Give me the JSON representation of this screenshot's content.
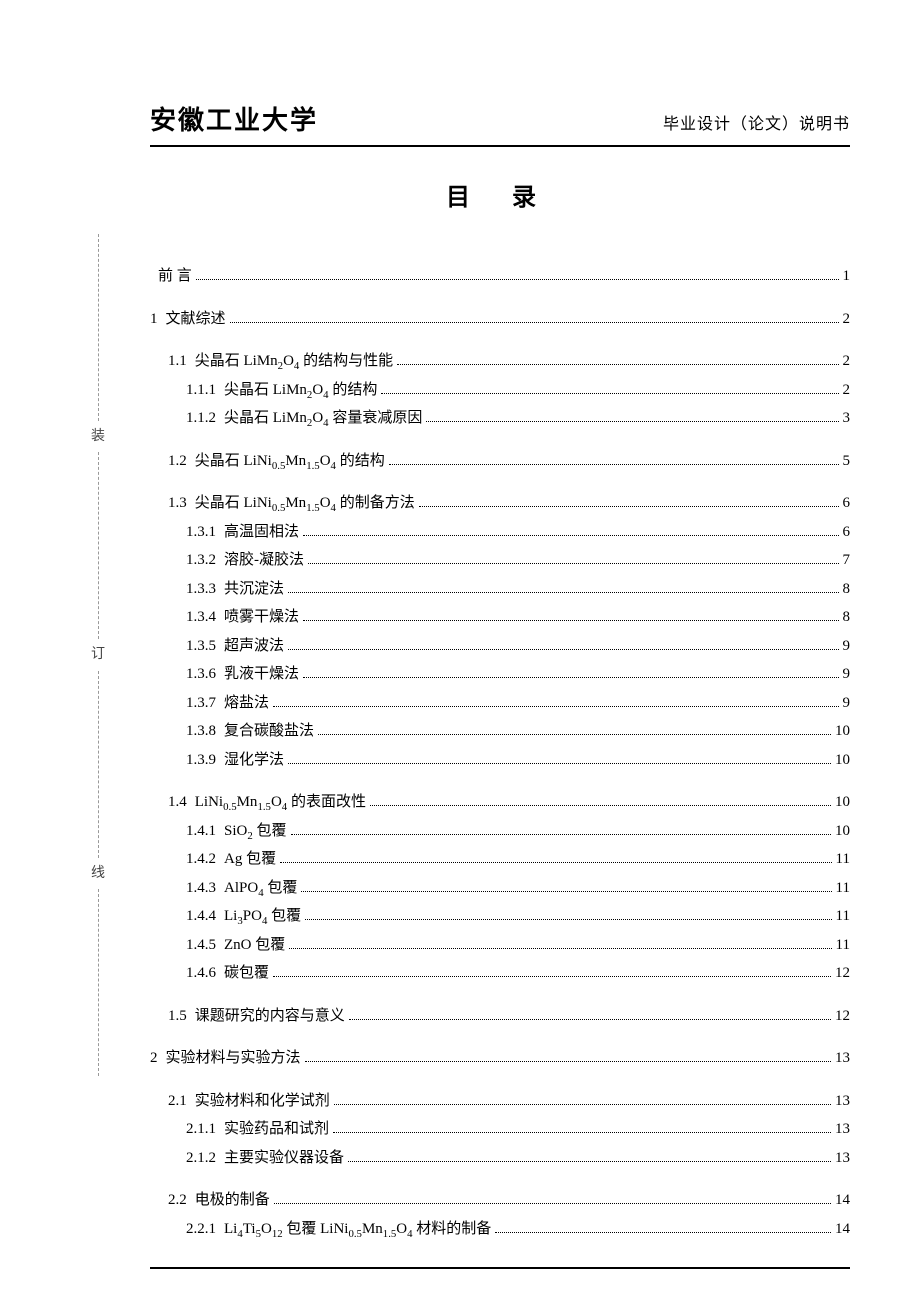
{
  "header": {
    "university": "安徽工业大学",
    "subtitle": "毕业设计（论文）说明书"
  },
  "toc_title": "目  录",
  "binding_chars": [
    "装",
    "订",
    "线"
  ],
  "entries": [
    {
      "level": 0,
      "gap": false,
      "num": "",
      "label": "前    言",
      "page": "1"
    },
    {
      "level": 0,
      "gap": true,
      "num": "1",
      "label": "    文献综述",
      "page": "2"
    },
    {
      "level": 1,
      "gap": true,
      "num": "1.1",
      "label": "尖晶石 LiMn<sub>2</sub>O<sub>4</sub> 的结构与性能",
      "page": "2"
    },
    {
      "level": 2,
      "gap": false,
      "num": "1.1.1",
      "label": " 尖晶石 LiMn<sub>2</sub>O<sub>4</sub> 的结构",
      "page": "2"
    },
    {
      "level": 2,
      "gap": false,
      "num": "1.1.2",
      "label": " 尖晶石 LiMn<sub>2</sub>O<sub>4</sub> 容量衰减原因",
      "page": "3"
    },
    {
      "level": 1,
      "gap": true,
      "num": "1.2",
      "label": "尖晶石 LiNi<sub>0.5</sub>Mn<sub>1.5</sub>O<sub>4</sub> 的结构",
      "page": "5"
    },
    {
      "level": 1,
      "gap": true,
      "num": "1.3",
      "label": "尖晶石 LiNi<sub>0.5</sub>Mn<sub>1.5</sub>O<sub>4</sub> 的制备方法",
      "page": "6"
    },
    {
      "level": 2,
      "gap": false,
      "num": "1.3.1",
      "label": " 高温固相法",
      "page": "6"
    },
    {
      "level": 2,
      "gap": false,
      "num": "1.3.2",
      "label": " 溶胶-凝胶法",
      "page": "7"
    },
    {
      "level": 2,
      "gap": false,
      "num": "1.3.3",
      "label": " 共沉淀法",
      "page": "8"
    },
    {
      "level": 2,
      "gap": false,
      "num": "1.3.4",
      "label": " 喷雾干燥法",
      "page": "8"
    },
    {
      "level": 2,
      "gap": false,
      "num": "1.3.5",
      "label": " 超声波法",
      "page": "9"
    },
    {
      "level": 2,
      "gap": false,
      "num": "1.3.6",
      "label": " 乳液干燥法",
      "page": "9"
    },
    {
      "level": 2,
      "gap": false,
      "num": "1.3.7",
      "label": " 熔盐法",
      "page": "9"
    },
    {
      "level": 2,
      "gap": false,
      "num": "1.3.8",
      "label": " 复合碳酸盐法",
      "page": "10"
    },
    {
      "level": 2,
      "gap": false,
      "num": "1.3.9",
      "label": " 湿化学法",
      "page": "10"
    },
    {
      "level": 1,
      "gap": true,
      "num": "1.4",
      "label": "LiNi<sub>0.5</sub>Mn<sub>1.5</sub>O<sub>4</sub> 的表面改性",
      "page": "10"
    },
    {
      "level": 2,
      "gap": false,
      "num": "1.4.1",
      "label": " SiO<sub>2</sub> 包覆",
      "page": "10"
    },
    {
      "level": 2,
      "gap": false,
      "num": "1.4.2",
      "label": " Ag 包覆",
      "page": "11"
    },
    {
      "level": 2,
      "gap": false,
      "num": "1.4.3",
      "label": " AlPO<sub>4</sub> 包覆",
      "page": "11"
    },
    {
      "level": 2,
      "gap": false,
      "num": "1.4.4",
      "label": " Li<sub>3</sub>PO<sub>4</sub> 包覆",
      "page": "11"
    },
    {
      "level": 2,
      "gap": false,
      "num": "1.4.5",
      "label": " ZnO 包覆",
      "page": "11"
    },
    {
      "level": 2,
      "gap": false,
      "num": "1.4.6",
      "label": " 碳包覆",
      "page": "12"
    },
    {
      "level": 1,
      "gap": true,
      "num": "1.5",
      "label": "课题研究的内容与意义",
      "page": "12"
    },
    {
      "level": 0,
      "gap": true,
      "num": "2",
      "label": " 实验材料与实验方法",
      "page": "13"
    },
    {
      "level": 1,
      "gap": true,
      "num": "2.1",
      "label": "   实验材料和化学试剂",
      "page": "13"
    },
    {
      "level": 2,
      "gap": false,
      "num": "2.1.1",
      "label": " 实验药品和试剂",
      "page": "13"
    },
    {
      "level": 2,
      "gap": false,
      "num": "2.1.2",
      "label": " 主要实验仪器设备",
      "page": "13"
    },
    {
      "level": 1,
      "gap": true,
      "num": "2.2",
      "label": "   电极的制备",
      "page": "14"
    },
    {
      "level": 2,
      "gap": false,
      "num": "2.2.1",
      "label": " Li<sub>4</sub>Ti<sub>5</sub>O<sub>12</sub> 包覆 LiNi<sub>0.5</sub>Mn<sub>1.5</sub>O<sub>4</sub> 材料的制备",
      "page": "14"
    }
  ]
}
